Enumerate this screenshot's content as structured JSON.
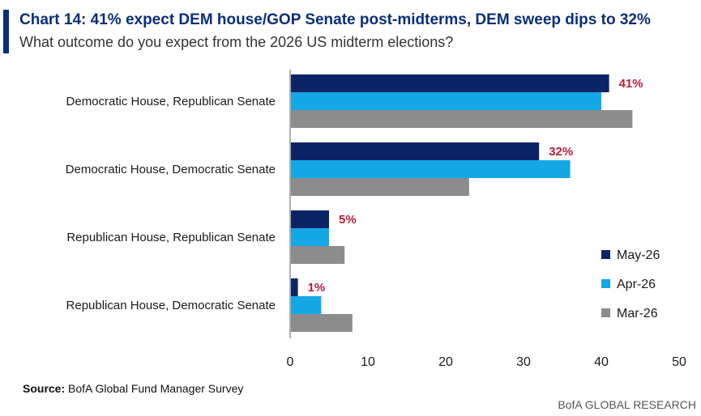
{
  "title": "Chart 14: 41% expect DEM house/GOP Senate post-midterms, DEM sweep dips to 32%",
  "subtitle": "What outcome do you expect from the 2026 US midterm elections?",
  "source_label": "Source:",
  "source_text": "BofA Global Fund Manager Survey",
  "brand": "BofA GLOBAL RESEARCH",
  "chart_data": {
    "type": "bar",
    "orientation": "horizontal",
    "categories": [
      "Democratic House, Republican Senate",
      "Democratic House, Democratic Senate",
      "Republican House, Republican Senate",
      "Republican House, Democratic Senate"
    ],
    "series": [
      {
        "name": "May-26",
        "color": "#0b2466",
        "values": [
          41,
          32,
          5,
          1
        ]
      },
      {
        "name": "Apr-26",
        "color": "#13a7e6",
        "values": [
          40,
          36,
          5,
          4
        ]
      },
      {
        "name": "Mar-26",
        "color": "#8c8c8c",
        "values": [
          44,
          23,
          7,
          8
        ]
      }
    ],
    "data_labels": [
      "41%",
      "32%",
      "5%",
      "1%"
    ],
    "data_label_color": "#b21f3c",
    "xlim": [
      0,
      50
    ],
    "xticks": [
      0,
      10,
      20,
      30,
      40,
      50
    ],
    "legend_position": "right"
  }
}
